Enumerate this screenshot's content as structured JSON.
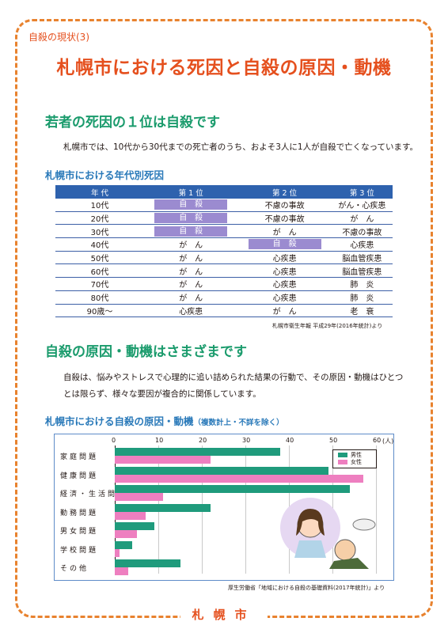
{
  "header": {
    "tag": "自殺の現状(3)",
    "title": "札幌市における死因と自殺の原因・動機"
  },
  "section1": {
    "heading": "若者の死因の１位は自殺です",
    "text": "札幌市では、10代から30代までの死亡者のうち、およそ3人に1人が自殺で亡くなっています。",
    "subheading": "札幌市における年代別死因"
  },
  "table": {
    "headers": [
      "年 代",
      "第 1 位",
      "第 2 位",
      "第 3 位"
    ],
    "rows": [
      {
        "age": "10代",
        "c1": "自　殺",
        "c2": "不慮の事故",
        "c3": "がん・心疾患",
        "hl1": true,
        "hl2": false
      },
      {
        "age": "20代",
        "c1": "自　殺",
        "c2": "不慮の事故",
        "c3": "が　ん",
        "hl1": true,
        "hl2": false
      },
      {
        "age": "30代",
        "c1": "自　殺",
        "c2": "が　ん",
        "c3": "不慮の事故",
        "hl1": true,
        "hl2": false
      },
      {
        "age": "40代",
        "c1": "が　ん",
        "c2": "自　殺",
        "c3": "心疾患",
        "hl1": false,
        "hl2": true
      },
      {
        "age": "50代",
        "c1": "が　ん",
        "c2": "心疾患",
        "c3": "脳血管疾患",
        "hl1": false,
        "hl2": false
      },
      {
        "age": "60代",
        "c1": "が　ん",
        "c2": "心疾患",
        "c3": "脳血管疾患",
        "hl1": false,
        "hl2": false
      },
      {
        "age": "70代",
        "c1": "が　ん",
        "c2": "心疾患",
        "c3": "肺　炎",
        "hl1": false,
        "hl2": false
      },
      {
        "age": "80代",
        "c1": "が　ん",
        "c2": "心疾患",
        "c3": "肺　炎",
        "hl1": false,
        "hl2": false
      },
      {
        "age": "90歳～",
        "c1": "心疾患",
        "c2": "が　ん",
        "c3": "老　衰",
        "hl1": false,
        "hl2": false
      }
    ],
    "source": "札幌市衛生年報 平成29年(2016年統計)より"
  },
  "section2": {
    "heading": "自殺の原因・動機はさまざまです",
    "text_line1": "自殺は、悩みやストレスで心理的に追い詰められた結果の行動で、その原因・動機はひとつ",
    "text_line2": "とは限らず、様々な要因が複合的に関係しています。",
    "subheading": "札幌市における自殺の原因・動機",
    "subheading_note": "（複数計上・不詳を除く）"
  },
  "chart_data": {
    "type": "bar",
    "orientation": "horizontal",
    "categories": [
      "家庭問題",
      "健康問題",
      "経済・生活問題",
      "勤務問題",
      "男女問題",
      "学校問題",
      "その他"
    ],
    "series": [
      {
        "name": "男性",
        "color": "#1f9b7c",
        "values": [
          38,
          49,
          54,
          22,
          9,
          4,
          15
        ]
      },
      {
        "name": "女性",
        "color": "#ee7fc0",
        "values": [
          22,
          57,
          11,
          7,
          5,
          1,
          3
        ]
      }
    ],
    "xlim": [
      0,
      60
    ],
    "ticks": [
      "0",
      "10",
      "20",
      "30",
      "40",
      "50",
      "60"
    ],
    "unit": "(人)",
    "legend": "top-right",
    "source": "厚生労働省「地域における自殺の基礎資料(2017年統計)」より"
  },
  "footer": {
    "label": "札幌市"
  }
}
